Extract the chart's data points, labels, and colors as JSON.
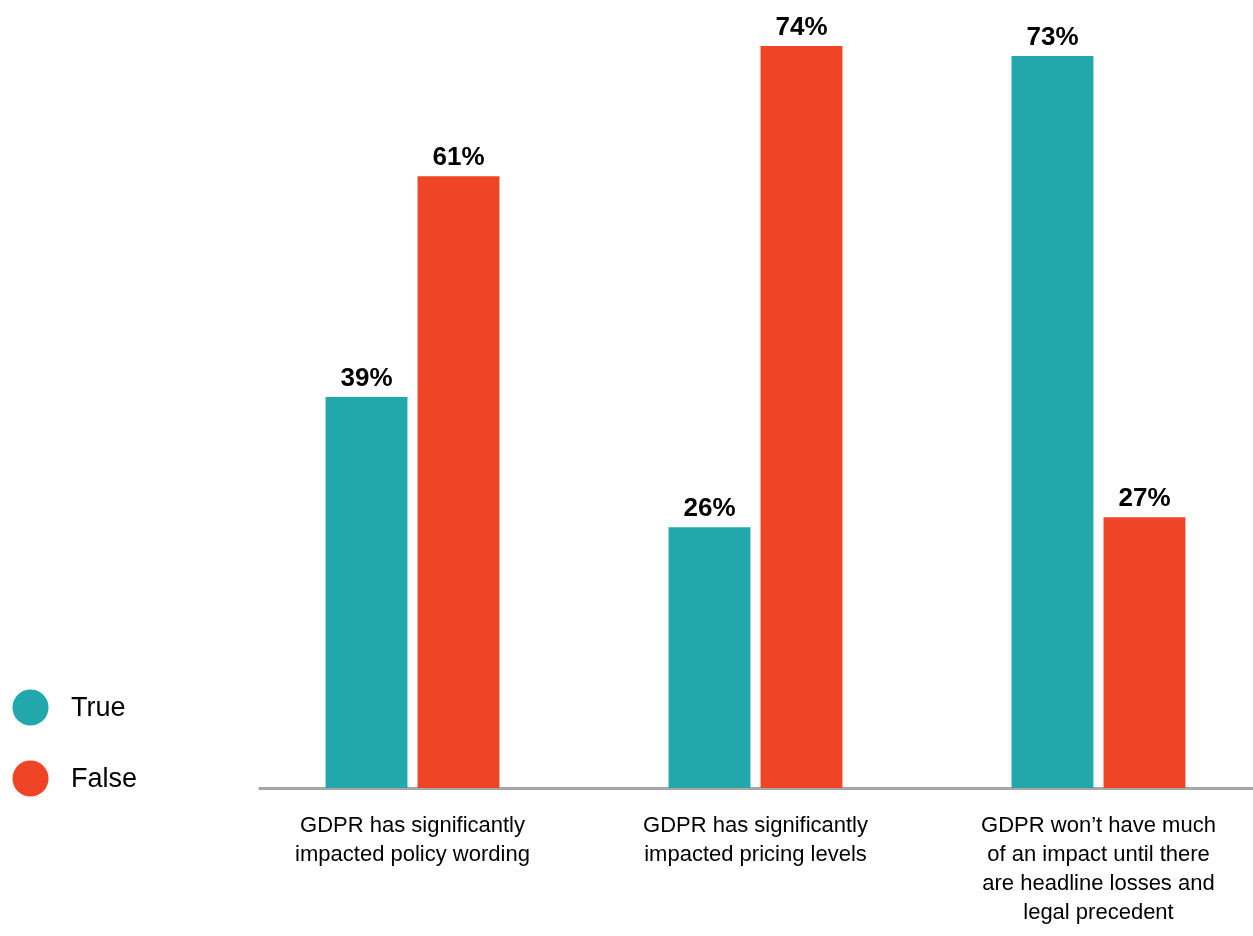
{
  "chart_data": {
    "type": "bar",
    "categories": [
      "GDPR has significantly\nimpacted policy wording",
      "GDPR has significantly\nimpacted pricing levels",
      "GDPR won’t have much\nof an impact until there\nare headline losses and\nlegal precedent"
    ],
    "series": [
      {
        "name": "True",
        "color": "#22a7ad",
        "values": [
          39,
          26,
          73
        ],
        "value_labels": [
          "39%",
          "26%",
          "73%"
        ]
      },
      {
        "name": "False",
        "color": "#ef4526",
        "values": [
          61,
          74,
          27
        ],
        "value_labels": [
          "61%",
          "74%",
          "27%"
        ]
      }
    ],
    "legend": "bottom left"
  }
}
